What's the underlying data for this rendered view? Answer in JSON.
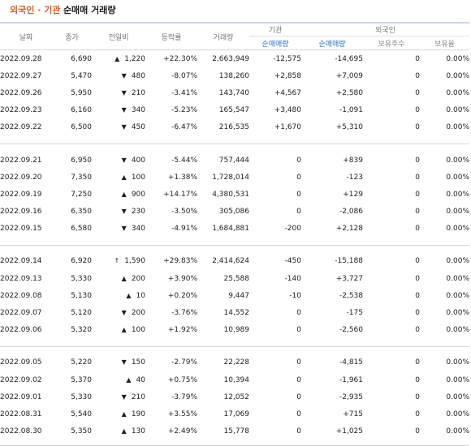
{
  "title": {
    "part1": "외국인 · 기관",
    "part2": "순매매 거래량"
  },
  "headers": {
    "date": "날짜",
    "close": "종가",
    "change": "전일비",
    "rate": "등락률",
    "volume": "거래량",
    "inst": "기관",
    "foreign": "외국인",
    "inst_net": "순매매량",
    "foreign_net": "순매매량",
    "holdings": "보유주수",
    "ratio": "보유율"
  },
  "groups": [
    {
      "rows": [
        {
          "date": "2022.09.28",
          "close": "6,690",
          "dir": "up",
          "mark": "▲",
          "change": "1,220",
          "rate": "+22.30%",
          "volume": "2,663,949",
          "inst": "-12,575",
          "foreign": "-14,695",
          "holdings": "0",
          "ratio": "0.00%"
        },
        {
          "date": "2022.09.27",
          "close": "5,470",
          "dir": "down",
          "mark": "▼",
          "change": "480",
          "rate": "-8.07%",
          "volume": "138,260",
          "inst": "+2,858",
          "foreign": "+7,009",
          "holdings": "0",
          "ratio": "0.00%"
        },
        {
          "date": "2022.09.26",
          "close": "5,950",
          "dir": "down",
          "mark": "▼",
          "change": "210",
          "rate": "-3.41%",
          "volume": "143,740",
          "inst": "+4,567",
          "foreign": "+2,580",
          "holdings": "0",
          "ratio": "0.00%"
        },
        {
          "date": "2022.09.23",
          "close": "6,160",
          "dir": "down",
          "mark": "▼",
          "change": "340",
          "rate": "-5.23%",
          "volume": "165,547",
          "inst": "+3,480",
          "foreign": "-1,091",
          "holdings": "0",
          "ratio": "0.00%"
        },
        {
          "date": "2022.09.22",
          "close": "6,500",
          "dir": "down",
          "mark": "▼",
          "change": "450",
          "rate": "-6.47%",
          "volume": "216,535",
          "inst": "+1,670",
          "foreign": "+5,310",
          "holdings": "0",
          "ratio": "0.00%"
        }
      ]
    },
    {
      "rows": [
        {
          "date": "2022.09.21",
          "close": "6,950",
          "dir": "down",
          "mark": "▼",
          "change": "400",
          "rate": "-5.44%",
          "volume": "757,444",
          "inst": "0",
          "foreign": "+839",
          "holdings": "0",
          "ratio": "0.00%"
        },
        {
          "date": "2022.09.20",
          "close": "7,350",
          "dir": "up",
          "mark": "▲",
          "change": "100",
          "rate": "+1.38%",
          "volume": "1,728,014",
          "inst": "0",
          "foreign": "-123",
          "holdings": "0",
          "ratio": "0.00%"
        },
        {
          "date": "2022.09.19",
          "close": "7,250",
          "dir": "up",
          "mark": "▲",
          "change": "900",
          "rate": "+14.17%",
          "volume": "4,380,531",
          "inst": "0",
          "foreign": "+129",
          "holdings": "0",
          "ratio": "0.00%"
        },
        {
          "date": "2022.09.16",
          "close": "6,350",
          "dir": "down",
          "mark": "▼",
          "change": "230",
          "rate": "-3.50%",
          "volume": "305,086",
          "inst": "0",
          "foreign": "-2,086",
          "holdings": "0",
          "ratio": "0.00%"
        },
        {
          "date": "2022.09.15",
          "close": "6,580",
          "dir": "down",
          "mark": "▼",
          "change": "340",
          "rate": "-4.91%",
          "volume": "1,684,881",
          "inst": "-200",
          "foreign": "+2,128",
          "holdings": "0",
          "ratio": "0.00%"
        }
      ]
    },
    {
      "rows": [
        {
          "date": "2022.09.14",
          "close": "6,920",
          "dir": "up",
          "mark": "↑",
          "change": "1,590",
          "rate": "+29.83%",
          "volume": "2,414,624",
          "inst": "-450",
          "foreign": "-15,188",
          "holdings": "0",
          "ratio": "0.00%"
        },
        {
          "date": "2022.09.13",
          "close": "5,330",
          "dir": "up",
          "mark": "▲",
          "change": "200",
          "rate": "+3.90%",
          "volume": "25,588",
          "inst": "-140",
          "foreign": "+3,727",
          "holdings": "0",
          "ratio": "0.00%"
        },
        {
          "date": "2022.09.08",
          "close": "5,130",
          "dir": "up",
          "mark": "▲",
          "change": "10",
          "rate": "+0.20%",
          "volume": "9,447",
          "inst": "-10",
          "foreign": "-2,538",
          "holdings": "0",
          "ratio": "0.00%"
        },
        {
          "date": "2022.09.07",
          "close": "5,120",
          "dir": "down",
          "mark": "▼",
          "change": "200",
          "rate": "-3.76%",
          "volume": "14,552",
          "inst": "0",
          "foreign": "-175",
          "holdings": "0",
          "ratio": "0.00%"
        },
        {
          "date": "2022.09.06",
          "close": "5,320",
          "dir": "up",
          "mark": "▲",
          "change": "100",
          "rate": "+1.92%",
          "volume": "10,989",
          "inst": "0",
          "foreign": "-2,560",
          "holdings": "0",
          "ratio": "0.00%"
        }
      ]
    },
    {
      "rows": [
        {
          "date": "2022.09.05",
          "close": "5,220",
          "dir": "down",
          "mark": "▼",
          "change": "150",
          "rate": "-2.79%",
          "volume": "22,228",
          "inst": "0",
          "foreign": "-4,815",
          "holdings": "0",
          "ratio": "0.00%"
        },
        {
          "date": "2022.09.02",
          "close": "5,370",
          "dir": "up",
          "mark": "▲",
          "change": "40",
          "rate": "+0.75%",
          "volume": "10,394",
          "inst": "0",
          "foreign": "-1,961",
          "holdings": "0",
          "ratio": "0.00%"
        },
        {
          "date": "2022.09.01",
          "close": "5,330",
          "dir": "down",
          "mark": "▼",
          "change": "210",
          "rate": "-3.79%",
          "volume": "12,052",
          "inst": "0",
          "foreign": "-2,935",
          "holdings": "0",
          "ratio": "0.00%"
        },
        {
          "date": "2022.08.31",
          "close": "5,540",
          "dir": "up",
          "mark": "▲",
          "change": "190",
          "rate": "+3.55%",
          "volume": "17,069",
          "inst": "0",
          "foreign": "+715",
          "holdings": "0",
          "ratio": "0.00%"
        },
        {
          "date": "2022.08.30",
          "close": "5,350",
          "dir": "up",
          "mark": "▲",
          "change": "130",
          "rate": "+2.49%",
          "volume": "15,778",
          "inst": "0",
          "foreign": "+1,025",
          "holdings": "0",
          "ratio": "0.00%"
        }
      ]
    }
  ],
  "colors": {
    "up": "#e00000",
    "down": "#2160c4",
    "title": "#e05a1a"
  }
}
